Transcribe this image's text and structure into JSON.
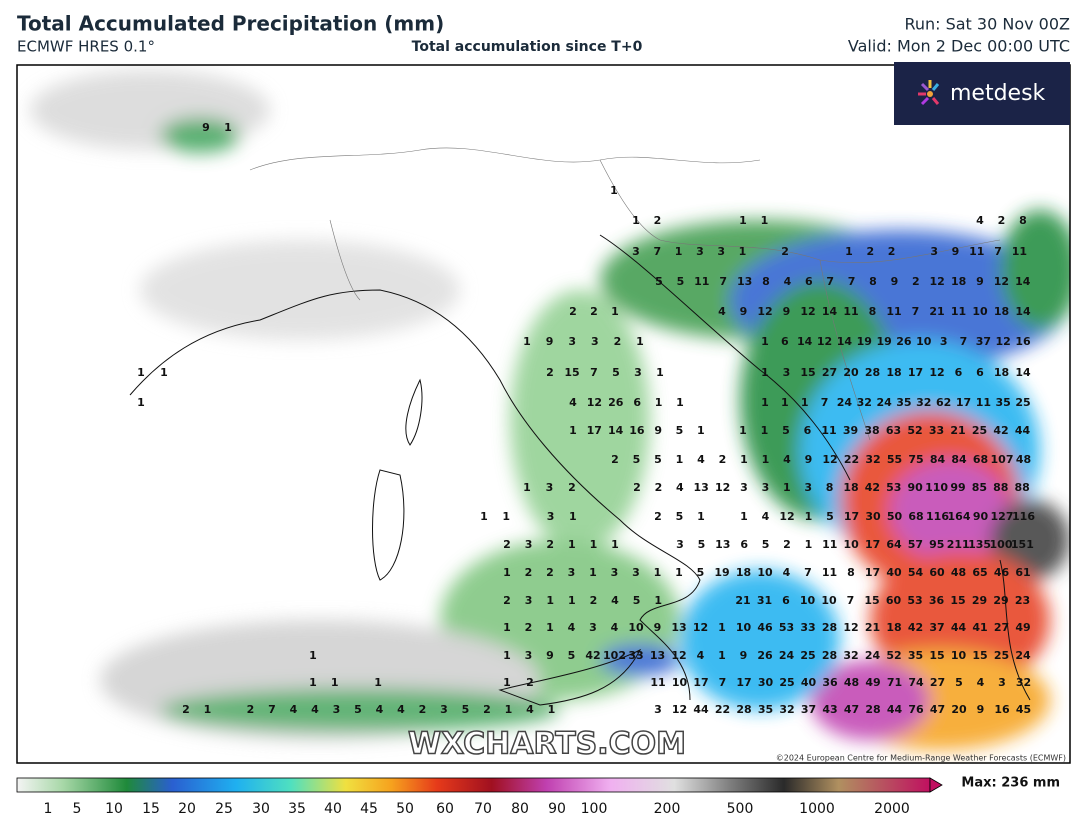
{
  "header": {
    "title": "Total Accumulated Precipitation (mm)",
    "model": "ECMWF HRES 0.1°",
    "subtitle": "Total accumulation since T+0",
    "run": "Run: Sat 30 Nov 00Z",
    "valid": "Valid: Mon 2 Dec 00:00 UTC"
  },
  "logo": "metdesk",
  "watermark": "WXCHARTS.COM",
  "copyright": "©2024 European Centre for Medium-Range Weather Forecasts (ECMWF)",
  "colorbar": {
    "labels": [
      "1",
      "5",
      "10",
      "15",
      "20",
      "25",
      "30",
      "35",
      "40",
      "45",
      "50",
      "60",
      "70",
      "80",
      "90",
      "100",
      "200",
      "500",
      "1000",
      "2000"
    ],
    "max": "Max: 236 mm"
  },
  "map": {
    "labels": [
      [
        9,
        1
      ],
      [
        1
      ],
      [
        1,
        2,
        null,
        null,
        null,
        1,
        1
      ],
      [
        4,
        2,
        8
      ],
      [
        3,
        7,
        1,
        3,
        3,
        1,
        null,
        2,
        null,
        null,
        1,
        2,
        2,
        null,
        3,
        9,
        11,
        7,
        11
      ],
      [
        5,
        5,
        11,
        7,
        13,
        8,
        4,
        6,
        7,
        7,
        8,
        9,
        2,
        12,
        18,
        9,
        12,
        14
      ],
      [
        2,
        2,
        1
      ],
      [
        4,
        9,
        12,
        9,
        12,
        14,
        11,
        8,
        11,
        7,
        21,
        11,
        10,
        18,
        14
      ],
      [
        1,
        9,
        3,
        3,
        2,
        1
      ],
      [
        1,
        6,
        14,
        12,
        14,
        19,
        19,
        26,
        10,
        3,
        7,
        37,
        12,
        16
      ],
      [
        1,
        1
      ],
      [
        2,
        15,
        7,
        5,
        3,
        1
      ],
      [
        1,
        3,
        15,
        27,
        20,
        28,
        18,
        17,
        12,
        6,
        6,
        18,
        14
      ],
      [
        1
      ],
      [
        4,
        12,
        26,
        6,
        1,
        1
      ],
      [
        1,
        1,
        1,
        7,
        24,
        32,
        24,
        35,
        32,
        62,
        17,
        11,
        35,
        25
      ],
      [
        1,
        17,
        14,
        16,
        9,
        5,
        1
      ],
      [
        1,
        1,
        5,
        6,
        11,
        39,
        38,
        63,
        52,
        33,
        21,
        25,
        42,
        44
      ],
      [
        2,
        5,
        5,
        1,
        4,
        2,
        1,
        1,
        4,
        9,
        12,
        22,
        32,
        55,
        75,
        84,
        84,
        68,
        107,
        48
      ],
      [
        1,
        3,
        2
      ],
      [
        2,
        2,
        4,
        13,
        12,
        3,
        3,
        1,
        3,
        8,
        18,
        42,
        53,
        90,
        110,
        99,
        85,
        88,
        88
      ],
      [
        1,
        1,
        null,
        3,
        1
      ],
      [
        2,
        5,
        1,
        null,
        1,
        4,
        12,
        1,
        5,
        17,
        30,
        50,
        68,
        116,
        164,
        90,
        127,
        116
      ],
      [
        2,
        3,
        2,
        1,
        1,
        1
      ],
      [
        3,
        5,
        13,
        6,
        5,
        2,
        1,
        11,
        10,
        17,
        64,
        57,
        95,
        211,
        135,
        100,
        151
      ],
      [
        1,
        2,
        2,
        3,
        1,
        3,
        3,
        1,
        1,
        5,
        19,
        18,
        10,
        4,
        7,
        11,
        8,
        17,
        40,
        54,
        60,
        48,
        65,
        46,
        61
      ],
      [
        2,
        3,
        1,
        1,
        2,
        4,
        5,
        1
      ],
      [
        21,
        31,
        6,
        10,
        10,
        7,
        15,
        60,
        53,
        36,
        15,
        29,
        29,
        23
      ],
      [
        1,
        2,
        1,
        4,
        3,
        4,
        10,
        9,
        13,
        12,
        1,
        10,
        46,
        53,
        33,
        28,
        12,
        21,
        18,
        42,
        37,
        44,
        41,
        27,
        49
      ],
      [
        1
      ],
      [
        1,
        3,
        9,
        5,
        42,
        102,
        33,
        13,
        12,
        4,
        1,
        9,
        26,
        24,
        25,
        28,
        32,
        24,
        52,
        35,
        15,
        10,
        15,
        25,
        24
      ],
      [
        1,
        1,
        null,
        1
      ],
      [
        1,
        2
      ],
      [
        11,
        10,
        17,
        7,
        17,
        30,
        25,
        40,
        36,
        48,
        49,
        71,
        74,
        27,
        5,
        4,
        3,
        32
      ],
      [
        2,
        1,
        null,
        2,
        7,
        4,
        4,
        3,
        5,
        4,
        4,
        2,
        3,
        5,
        2,
        1,
        4,
        1
      ],
      [
        3,
        12,
        44,
        22,
        28,
        35,
        32,
        37,
        43,
        47,
        28,
        44,
        76,
        47,
        20,
        9,
        16,
        45
      ]
    ]
  }
}
